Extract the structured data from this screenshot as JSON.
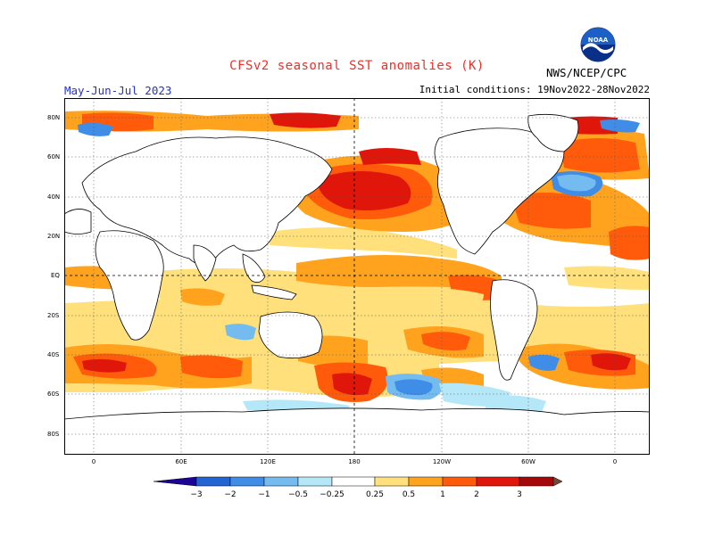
{
  "header": {
    "title": "CFSv2 seasonal SST anomalies (K)",
    "season": "May-Jun-Jul 2023",
    "initial_conditions": "Initial conditions: 19Nov2022-28Nov2022",
    "credit": "NWS/NCEP/CPC",
    "logo_text": "NOAA"
  },
  "map": {
    "lat_labels": [
      "80N",
      "60N",
      "40N",
      "20N",
      "EQ",
      "20S",
      "40S",
      "60S",
      "80S"
    ],
    "lon_labels": [
      "0",
      "60E",
      "120E",
      "180",
      "120W",
      "60W",
      "0"
    ]
  },
  "colorbar": {
    "labels": [
      "−3",
      "−2",
      "−1",
      "−0.5",
      "−0.25",
      "0.25",
      "0.5",
      "1",
      "2",
      "3"
    ],
    "colors": [
      "#1c0596",
      "#2364d4",
      "#3f8de6",
      "#74bcf0",
      "#b4e8f8",
      "#ffffff",
      "#ffe07a",
      "#ffa31f",
      "#ff5b0a",
      "#e0160b",
      "#a6080a",
      "#7a4538"
    ]
  },
  "palette": {
    "warm1": "#ffe07a",
    "warm2": "#ffa31f",
    "warm3": "#ff5b0a",
    "warm4": "#e0160b",
    "warm5": "#a6080a",
    "cool1": "#b4e8f8",
    "cool2": "#74bcf0",
    "cool3": "#3f8de6",
    "title_color": "#e8322b",
    "season_color": "#2233cc"
  }
}
